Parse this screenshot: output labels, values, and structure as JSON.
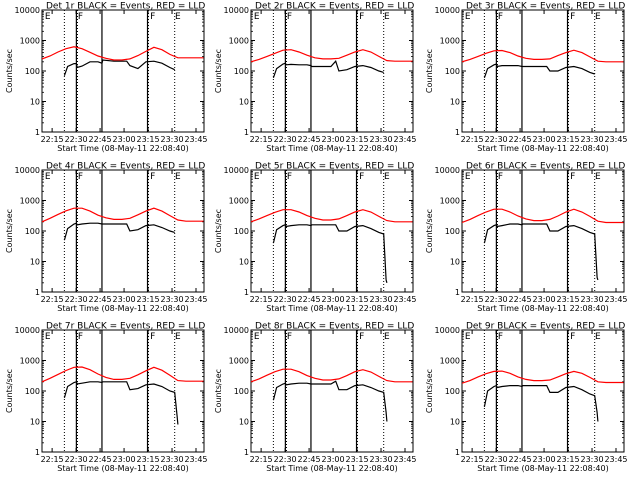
{
  "chart_data": {
    "type": "line",
    "layout": "3x3 grid of panels",
    "series_legend": {
      "black": "Events",
      "red": "LLD"
    },
    "colors": {
      "events": "#000000",
      "lld": "#ff0000",
      "axes": "#000000",
      "background": "#ffffff"
    },
    "shared": {
      "xlabel": "Start Time (08-May-11 22:08:40)",
      "ylabel": "Counts/sec",
      "x_ticks": [
        "22:15",
        "22:30",
        "22:45",
        "23:00",
        "23:15",
        "23:30",
        "23:45"
      ],
      "x_tick_minutes": [
        6.33,
        21.33,
        36.33,
        51.33,
        66.33,
        81.33,
        96.33
      ],
      "xlim_minutes": [
        0,
        101.33
      ],
      "y_scale": "log",
      "ylim": [
        1,
        10000
      ],
      "y_ticks": [
        "1",
        "10",
        "100",
        "1000",
        "10000"
      ],
      "y_tick_values": [
        1,
        10,
        100,
        1000,
        10000
      ],
      "vertical_lines": {
        "solid_minutes": [
          21.5,
          37.5,
          66.0
        ],
        "dotted_minutes": [
          14.0,
          22.2,
          66.6,
          83.0
        ]
      },
      "flare_markers": {
        "F_minutes": [
          21.8,
          67.0
        ],
        "E_minutes": [
          1.2,
          82.6
        ]
      }
    },
    "panels": [
      {
        "title": "Det 1r BLACK = Events, RED = LLD",
        "lld": {
          "x": [
            0,
            5,
            10,
            15,
            20,
            25,
            30,
            35,
            40,
            45,
            50,
            55,
            60,
            65,
            70,
            75,
            80,
            85,
            90,
            95,
            101
          ],
          "y": [
            250,
            310,
            420,
            540,
            620,
            540,
            410,
            310,
            260,
            230,
            230,
            250,
            320,
            440,
            600,
            500,
            350,
            270,
            270,
            270,
            270
          ]
        },
        "events": {
          "x": [
            14.0,
            16,
            20,
            21.5,
            22,
            25,
            30,
            35,
            37.5,
            38,
            45,
            50,
            53,
            55,
            60,
            65,
            70,
            75,
            80,
            83
          ],
          "y": [
            70,
            140,
            175,
            175,
            130,
            145,
            200,
            200,
            180,
            230,
            210,
            210,
            210,
            150,
            120,
            200,
            210,
            180,
            130,
            110
          ]
        }
      },
      {
        "title": "Det 2r BLACK = Events, RED = LLD",
        "lld": {
          "x": [
            0,
            5,
            10,
            15,
            20,
            25,
            30,
            35,
            40,
            45,
            50,
            55,
            60,
            65,
            70,
            75,
            80,
            85,
            90,
            95,
            101
          ],
          "y": [
            200,
            240,
            300,
            380,
            480,
            500,
            420,
            330,
            270,
            250,
            250,
            260,
            330,
            420,
            500,
            420,
            300,
            220,
            210,
            210,
            210
          ]
        },
        "events": {
          "x": [
            14.0,
            16,
            20,
            21.5,
            22,
            25,
            30,
            35,
            37.5,
            38,
            45,
            50,
            53,
            55,
            60,
            65,
            70,
            75,
            80,
            83
          ],
          "y": [
            60,
            120,
            170,
            180,
            160,
            165,
            160,
            160,
            150,
            140,
            140,
            140,
            210,
            100,
            110,
            140,
            150,
            130,
            100,
            90
          ]
        }
      },
      {
        "title": "Det 3r BLACK = Events, RED = LLD",
        "lld": {
          "x": [
            0,
            5,
            10,
            15,
            20,
            25,
            30,
            35,
            40,
            45,
            50,
            55,
            60,
            65,
            70,
            75,
            80,
            85,
            90,
            95,
            101
          ],
          "y": [
            200,
            240,
            300,
            380,
            460,
            470,
            400,
            310,
            260,
            240,
            240,
            250,
            320,
            400,
            480,
            400,
            290,
            210,
            200,
            200,
            200
          ]
        },
        "events": {
          "x": [
            14.0,
            16,
            20,
            21.5,
            22,
            25,
            30,
            35,
            37.5,
            38,
            45,
            50,
            53,
            55,
            60,
            65,
            70,
            75,
            80,
            83
          ],
          "y": [
            60,
            120,
            160,
            170,
            140,
            150,
            150,
            150,
            140,
            140,
            140,
            140,
            140,
            100,
            100,
            130,
            140,
            120,
            90,
            80
          ]
        }
      },
      {
        "title": "Det 4r BLACK = Events, RED = LLD",
        "lld": {
          "x": [
            0,
            5,
            10,
            15,
            20,
            25,
            30,
            35,
            40,
            45,
            50,
            55,
            60,
            65,
            70,
            75,
            80,
            85,
            90,
            95,
            101
          ],
          "y": [
            200,
            260,
            350,
            460,
            560,
            560,
            450,
            330,
            270,
            240,
            240,
            260,
            340,
            450,
            560,
            450,
            320,
            230,
            210,
            210,
            210
          ]
        },
        "events": {
          "x": [
            14.0,
            16,
            20,
            21.5,
            22,
            25,
            30,
            35,
            37.5,
            38,
            45,
            50,
            53,
            55,
            60,
            65,
            70,
            75,
            80,
            83
          ],
          "y": [
            50,
            120,
            170,
            180,
            160,
            170,
            180,
            180,
            170,
            170,
            170,
            170,
            170,
            100,
            110,
            150,
            160,
            130,
            100,
            90
          ]
        }
      },
      {
        "title": "Det 5r BLACK = Events, RED = LLD",
        "lld": {
          "x": [
            0,
            5,
            10,
            15,
            20,
            25,
            30,
            35,
            40,
            45,
            50,
            55,
            60,
            65,
            70,
            75,
            80,
            85,
            90,
            95,
            101
          ],
          "y": [
            200,
            250,
            320,
            410,
            500,
            500,
            420,
            320,
            260,
            230,
            230,
            250,
            320,
            420,
            500,
            420,
            300,
            220,
            200,
            200,
            200
          ]
        },
        "events": {
          "x": [
            14.0,
            16,
            20,
            21.5,
            22,
            25,
            30,
            35,
            37.5,
            38,
            45,
            50,
            53,
            55,
            60,
            65,
            70,
            75,
            80,
            83,
            84.5,
            85
          ],
          "y": [
            40,
            110,
            150,
            160,
            140,
            150,
            160,
            160,
            150,
            160,
            160,
            160,
            160,
            100,
            100,
            140,
            150,
            120,
            90,
            80,
            2.5,
            2
          ]
        }
      },
      {
        "title": "Det 6r BLACK = Events, RED = LLD",
        "lld": {
          "x": [
            0,
            5,
            10,
            15,
            20,
            25,
            30,
            35,
            40,
            45,
            50,
            55,
            60,
            65,
            70,
            75,
            80,
            85,
            90,
            95,
            101
          ],
          "y": [
            190,
            240,
            320,
            420,
            520,
            520,
            420,
            310,
            250,
            220,
            220,
            240,
            310,
            420,
            520,
            420,
            300,
            210,
            190,
            190,
            190
          ]
        },
        "events": {
          "x": [
            14.0,
            16,
            20,
            21.5,
            22,
            25,
            30,
            35,
            37.5,
            38,
            45,
            50,
            53,
            55,
            60,
            65,
            70,
            75,
            80,
            83,
            84.5,
            85
          ],
          "y": [
            40,
            110,
            150,
            160,
            140,
            150,
            170,
            170,
            160,
            170,
            170,
            170,
            170,
            100,
            100,
            140,
            150,
            120,
            90,
            80,
            3,
            2.5
          ]
        }
      },
      {
        "title": "Det 7r BLACK = Events, RED = LLD",
        "lld": {
          "x": [
            0,
            5,
            10,
            15,
            20,
            25,
            30,
            35,
            40,
            45,
            50,
            55,
            60,
            65,
            70,
            75,
            80,
            85,
            90,
            95,
            101
          ],
          "y": [
            200,
            260,
            350,
            470,
            600,
            610,
            500,
            360,
            280,
            240,
            240,
            260,
            340,
            460,
            600,
            480,
            330,
            220,
            210,
            210,
            210
          ]
        },
        "events": {
          "x": [
            14.0,
            16,
            20,
            21.5,
            22,
            25,
            30,
            35,
            37.5,
            38,
            45,
            50,
            53,
            55,
            60,
            65,
            70,
            75,
            80,
            83,
            84.5,
            85
          ],
          "y": [
            60,
            140,
            190,
            200,
            170,
            180,
            200,
            200,
            190,
            200,
            200,
            200,
            200,
            110,
            120,
            160,
            170,
            140,
            100,
            90,
            15,
            8
          ]
        }
      },
      {
        "title": "Det 8r BLACK = Events, RED = LLD",
        "lld": {
          "x": [
            0,
            5,
            10,
            15,
            20,
            25,
            30,
            35,
            40,
            45,
            50,
            55,
            60,
            65,
            70,
            75,
            80,
            85,
            90,
            95,
            101
          ],
          "y": [
            200,
            250,
            330,
            430,
            520,
            520,
            430,
            320,
            260,
            230,
            230,
            250,
            320,
            430,
            500,
            420,
            300,
            220,
            200,
            200,
            200
          ]
        },
        "events": {
          "x": [
            14.0,
            16,
            20,
            21.5,
            22,
            25,
            30,
            35,
            37.5,
            38,
            45,
            50,
            53,
            55,
            60,
            65,
            70,
            75,
            80,
            83,
            84.5,
            85
          ],
          "y": [
            50,
            130,
            170,
            180,
            160,
            170,
            180,
            180,
            170,
            170,
            170,
            170,
            210,
            110,
            110,
            150,
            160,
            130,
            100,
            90,
            20,
            10
          ]
        }
      },
      {
        "title": "Det 9r BLACK = Events, RED = LLD",
        "lld": {
          "x": [
            0,
            5,
            10,
            15,
            20,
            25,
            30,
            35,
            40,
            45,
            50,
            55,
            60,
            65,
            70,
            75,
            80,
            85,
            90,
            95,
            101
          ],
          "y": [
            180,
            220,
            290,
            370,
            440,
            450,
            380,
            290,
            240,
            220,
            220,
            230,
            290,
            370,
            440,
            380,
            280,
            200,
            190,
            190,
            190
          ]
        },
        "events": {
          "x": [
            14.0,
            16,
            20,
            21.5,
            22,
            25,
            30,
            35,
            37.5,
            38,
            45,
            50,
            53,
            55,
            60,
            65,
            70,
            75,
            80,
            83,
            84.5,
            85
          ],
          "y": [
            30,
            100,
            140,
            150,
            130,
            140,
            150,
            150,
            140,
            150,
            150,
            150,
            150,
            90,
            90,
            130,
            140,
            110,
            80,
            70,
            20,
            10
          ]
        }
      }
    ]
  }
}
